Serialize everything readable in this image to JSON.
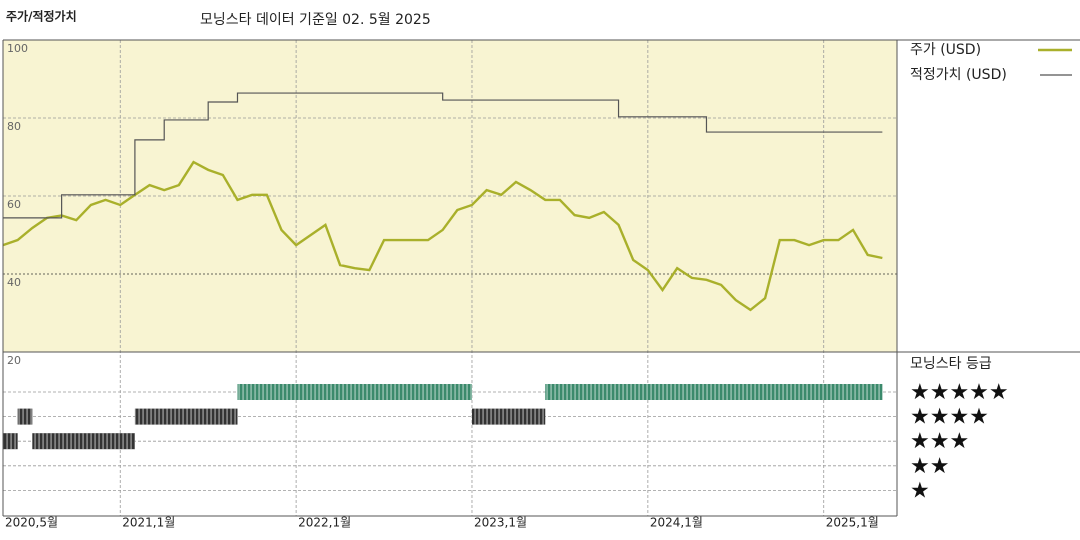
{
  "chart_data": {
    "type": "line",
    "title": "주가/적정가치",
    "subtitle": "모닝스타 데이터 기준일 02. 5월 2025",
    "xlim": [
      "2020-05",
      "2025-06"
    ],
    "xticks": [
      {
        "value": "2020-05",
        "label": "2020,5월"
      },
      {
        "value": "2021-01",
        "label": "2021,1월"
      },
      {
        "value": "2022-01",
        "label": "2022,1월"
      },
      {
        "value": "2023-01",
        "label": "2023,1월"
      },
      {
        "value": "2024-01",
        "label": "2024,1월"
      },
      {
        "value": "2025-01",
        "label": "2025,1월"
      }
    ],
    "ylim": [
      20,
      100
    ],
    "yticks": [
      20,
      40,
      60,
      80,
      100
    ],
    "grid": true,
    "background": "#f8f4d2",
    "series": [
      {
        "name": "주가 (USD)",
        "color": "#a9b02b",
        "x": [
          "2020-05",
          "2020-06",
          "2020-07",
          "2020-08",
          "2020-09",
          "2020-10",
          "2020-11",
          "2020-12",
          "2021-01",
          "2021-02",
          "2021-03",
          "2021-04",
          "2021-05",
          "2021-06",
          "2021-07",
          "2021-08",
          "2021-09",
          "2021-10",
          "2021-11",
          "2021-12",
          "2022-01",
          "2022-02",
          "2022-03",
          "2022-04",
          "2022-05",
          "2022-06",
          "2022-07",
          "2022-08",
          "2022-09",
          "2022-10",
          "2022-11",
          "2022-12",
          "2023-01",
          "2023-02",
          "2023-03",
          "2023-04",
          "2023-05",
          "2023-06",
          "2023-07",
          "2023-08",
          "2023-09",
          "2023-10",
          "2023-11",
          "2023-12",
          "2024-01",
          "2024-02",
          "2024-03",
          "2024-04",
          "2024-05",
          "2024-06",
          "2024-07",
          "2024-08",
          "2024-09",
          "2024-10",
          "2024-11",
          "2024-12",
          "2025-01",
          "2025-02",
          "2025-03",
          "2025-04",
          "2025-05"
        ],
        "values": [
          47.4,
          48.7,
          51.8,
          54.4,
          55,
          53.8,
          57.7,
          59,
          57.7,
          60.3,
          62.8,
          61.5,
          62.8,
          68.7,
          66.7,
          65.4,
          59,
          60.3,
          60.3,
          51.3,
          47.4,
          50,
          52.6,
          42.3,
          41.5,
          41,
          48.7,
          48.7,
          48.7,
          48.7,
          51.3,
          56.4,
          57.7,
          61.5,
          60.3,
          63.6,
          61.5,
          59,
          59,
          55.1,
          54.4,
          55.9,
          52.6,
          43.6,
          41,
          35.9,
          41.5,
          39,
          38.5,
          37.2,
          33.3,
          30.8,
          33.8,
          48.7,
          48.7,
          47.4,
          48.7,
          48.7,
          51.3,
          44.9,
          44.1
        ]
      },
      {
        "name": "적정가치 (USD)",
        "color": "#555555",
        "step": true,
        "x": [
          "2020-05",
          "2020-09",
          "2021-02",
          "2021-04",
          "2021-07",
          "2021-09",
          "2022-11",
          "2023-11",
          "2024-05",
          "2025-05"
        ],
        "values": [
          54.4,
          60.3,
          74.4,
          79.5,
          84.1,
          86.4,
          84.6,
          80.3,
          76.4,
          76.4
        ]
      }
    ],
    "rating": {
      "title": "모닝스타 등급",
      "ticks": [
        {
          "value": 5,
          "label": "★★★★★"
        },
        {
          "value": 4,
          "label": "★★★★"
        },
        {
          "value": 3,
          "label": "★★★"
        },
        {
          "value": 2,
          "label": "★★"
        },
        {
          "value": 1,
          "label": "★"
        }
      ],
      "x_start": [
        "2020-05",
        "2020-06",
        "2020-07",
        "2021-02",
        "2021-09",
        "2023-01",
        "2023-06"
      ],
      "x_end": [
        "2020-06",
        "2020-07",
        "2021-02",
        "2021-09",
        "2023-01",
        "2023-06",
        "2025-05"
      ],
      "values": [
        3,
        4,
        3,
        4,
        5,
        4,
        5
      ],
      "colors": [
        "#333333",
        "#333333",
        "#333333",
        "#333333",
        "#3b8a6c",
        "#333333",
        "#3b8a6c"
      ]
    }
  }
}
